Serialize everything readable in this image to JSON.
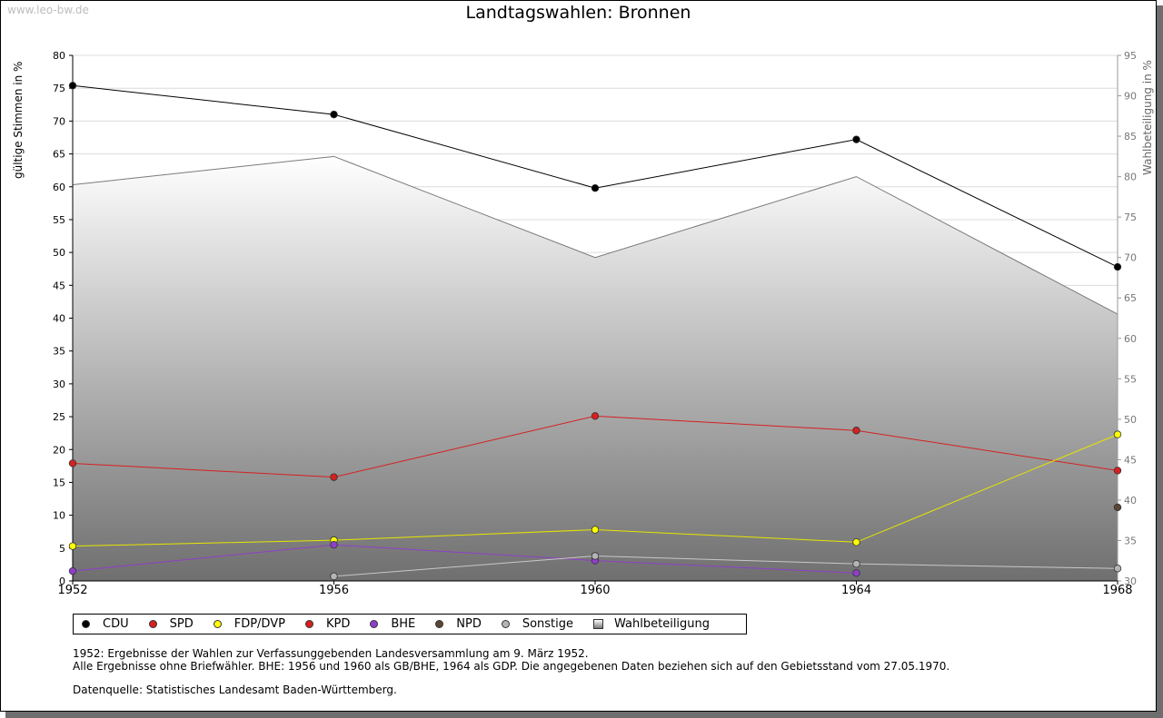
{
  "watermark": "www.leo-bw.de",
  "title": "Landtagswahlen: Bronnen",
  "y_left_label": "gültige Stimmen in %",
  "y_right_label": "Wahlbeteiligung in %",
  "notes": [
    "1952: Ergebnisse der Wahlen zur Verfassunggebenden Landesversammlung am 9. März 1952.",
    "Alle Ergebnisse ohne Briefwähler. BHE: 1956 und 1960 als GB/BHE, 1964 als GDP. Die angegebenen Daten beziehen sich auf den Gebietsstand vom 27.05.1970.",
    "Datenquelle: Statistisches Landesamt Baden-Württemberg."
  ],
  "chart_data": {
    "type": "line",
    "title": "Landtagswahlen: Bronnen",
    "x": [
      "1952",
      "1956",
      "1960",
      "1964",
      "1968"
    ],
    "ylabel": "gültige Stimmen in %",
    "y2label": "Wahlbeteiligung in %",
    "ylim": [
      0,
      80
    ],
    "y2lim": [
      30,
      95
    ],
    "yticks": [
      0,
      5,
      10,
      15,
      20,
      25,
      30,
      35,
      40,
      45,
      50,
      55,
      60,
      65,
      70,
      75,
      80
    ],
    "y2ticks": [
      30,
      35,
      40,
      45,
      50,
      55,
      60,
      65,
      70,
      75,
      80,
      85,
      90,
      95
    ],
    "grid": true,
    "legend_position": "bottom",
    "series": [
      {
        "name": "CDU",
        "color": "#000000",
        "line_color": "#000000",
        "values": [
          75.4,
          71.0,
          59.8,
          67.2,
          47.8
        ]
      },
      {
        "name": "SPD",
        "color": "#d62020",
        "line_color": "#d62020",
        "values": [
          17.9,
          15.8,
          25.1,
          22.9,
          16.8
        ]
      },
      {
        "name": "FDP/DVP",
        "color": "#ffff00",
        "line_color": "#e6e600",
        "values": [
          5.3,
          6.2,
          7.8,
          5.9,
          22.3
        ]
      },
      {
        "name": "KPD",
        "color": "#d62020",
        "line_color": "#d62020",
        "values": [
          null,
          null,
          null,
          null,
          null
        ]
      },
      {
        "name": "BHE",
        "color": "#8e3fc9",
        "line_color": "#8e3fc9",
        "values": [
          1.5,
          5.5,
          3.1,
          1.2,
          null
        ]
      },
      {
        "name": "NPD",
        "color": "#5a4636",
        "line_color": "#5a4636",
        "values": [
          null,
          null,
          null,
          null,
          11.2
        ]
      },
      {
        "name": "Sonstige",
        "color": "#b4b4b4",
        "line_color": "#c8c8c8",
        "values": [
          null,
          0.7,
          3.8,
          2.6,
          1.9
        ]
      },
      {
        "name": "Wahlbeteiligung",
        "color": "#bfbfbf",
        "axis": "right",
        "area": true,
        "values": [
          79.0,
          82.5,
          70.0,
          80.0,
          63.0
        ]
      }
    ]
  }
}
